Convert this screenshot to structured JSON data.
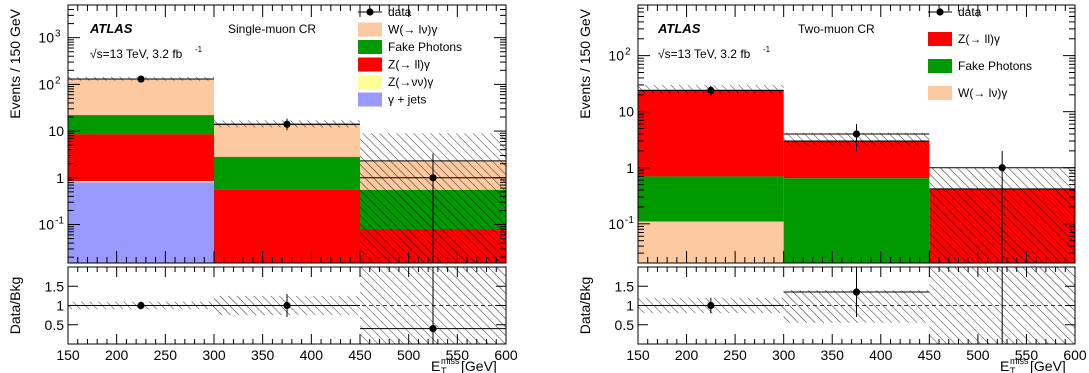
{
  "chart_data": [
    {
      "type": "bar",
      "title": "Single-muon CR",
      "experiment": "ATLAS",
      "energy_label": "√s=13 TeV, 3.2 fb",
      "energy_sup": "-1",
      "xlabel": "E",
      "xlabel_sup": "miss",
      "xlabel_sub": "T",
      "xlabel_unit": "[GeV]",
      "ylabel": "Events / 150 GeV",
      "ratio_ylabel": "Data/Bkg",
      "xlim": [
        150,
        600
      ],
      "ylim": [
        0.015,
        5000
      ],
      "y_scale": "log",
      "x_ticks": [
        "150",
        "200",
        "250",
        "300",
        "350",
        "400",
        "450",
        "500",
        "550",
        "600"
      ],
      "y_ticks": [
        {
          "v": 0.1,
          "label": "10",
          "sup": "-1"
        },
        {
          "v": 1,
          "label": "1",
          "sup": ""
        },
        {
          "v": 10,
          "label": "10",
          "sup": ""
        },
        {
          "v": 100,
          "label": "10",
          "sup": "2"
        },
        {
          "v": 1000,
          "label": "10",
          "sup": "3"
        }
      ],
      "ratio_ylim": [
        0,
        2
      ],
      "ratio_ticks": [
        "0.5",
        "1",
        "1.5"
      ],
      "bins": [
        [
          150,
          300
        ],
        [
          300,
          450
        ],
        [
          450,
          600
        ]
      ],
      "stack_order": [
        "γ + jets",
        "Z(→νν)γ",
        "Z(→ ll)γ",
        "Fake Photons",
        "W(→ lν)γ"
      ],
      "stack_cumulative": [
        [
          0.8,
          0.85,
          8.5,
          22,
          130
        ],
        [
          0.001,
          0.001,
          0.55,
          2.8,
          14
        ],
        [
          0.001,
          0.001,
          0.08,
          0.55,
          2.3
        ]
      ],
      "uncertainty_band": [
        [
          120,
          145
        ],
        [
          12,
          17
        ],
        [
          0.01,
          9
        ]
      ],
      "data": [
        {
          "x": 225,
          "y": 130,
          "err_up": 12,
          "err_down": 12
        },
        {
          "x": 375,
          "y": 14,
          "err_up": 4.5,
          "err_down": 3.5
        },
        {
          "x": 525,
          "y": 1,
          "err_up": 2.3,
          "err_down": 0.99
        }
      ],
      "ratio": [
        {
          "x": 225,
          "y": 1.0,
          "err": 0.1,
          "band": [
            0.9,
            1.1
          ]
        },
        {
          "x": 375,
          "y": 1.0,
          "err": 0.3,
          "band": [
            0.75,
            1.25
          ]
        },
        {
          "x": 525,
          "y": 0.4,
          "err": 1.6,
          "band": [
            0.0,
            2.0
          ]
        }
      ],
      "legend": [
        {
          "label": "data",
          "kind": "marker"
        },
        {
          "label": "W(→ lν)γ",
          "kind": "fill",
          "color": "#fcc9a0"
        },
        {
          "label": "Fake Photons",
          "kind": "fill",
          "color": "#009900"
        },
        {
          "label": "Z(→ ll)γ",
          "kind": "fill",
          "color": "#ff0000"
        },
        {
          "label": "Z(→νν)γ",
          "kind": "fill",
          "color": "#ffff99"
        },
        {
          "label": "γ + jets",
          "kind": "fill",
          "color": "#9999ff"
        }
      ]
    },
    {
      "type": "bar",
      "title": "Two-muon CR",
      "experiment": "ATLAS",
      "energy_label": "√s=13 TeV, 3.2 fb",
      "energy_sup": "-1",
      "xlabel": "E",
      "xlabel_sup": "miss",
      "xlabel_sub": "T",
      "xlabel_unit": "[GeV]",
      "ylabel": "Events / 150 GeV",
      "ratio_ylabel": "Data/Bkg",
      "xlim": [
        150,
        600
      ],
      "ylim": [
        0.02,
        800
      ],
      "y_scale": "log",
      "x_ticks": [
        "150",
        "200",
        "250",
        "300",
        "350",
        "400",
        "450",
        "500",
        "550",
        "600"
      ],
      "y_ticks": [
        {
          "v": 0.1,
          "label": "10",
          "sup": "-1"
        },
        {
          "v": 1,
          "label": "1",
          "sup": ""
        },
        {
          "v": 10,
          "label": "10",
          "sup": ""
        },
        {
          "v": 100,
          "label": "10",
          "sup": "2"
        }
      ],
      "ratio_ylim": [
        0,
        2
      ],
      "ratio_ticks": [
        "0.5",
        "1",
        "1.5"
      ],
      "bins": [
        [
          150,
          300
        ],
        [
          300,
          450
        ],
        [
          450,
          600
        ]
      ],
      "stack_order": [
        "W(→ lν)γ",
        "Fake Photons",
        "Z(→ ll)γ"
      ],
      "stack_cumulative": [
        [
          0.11,
          0.7,
          24
        ],
        [
          0.001,
          0.65,
          3.0
        ],
        [
          0.001,
          0.001,
          0.42
        ]
      ],
      "uncertainty_band": [
        [
          21,
          30
        ],
        [
          2.4,
          4.2
        ],
        [
          0.01,
          1.0
        ]
      ],
      "data": [
        {
          "x": 225,
          "y": 24,
          "err_up": 5,
          "err_down": 5
        },
        {
          "x": 375,
          "y": 4,
          "err_up": 2,
          "err_down": 2
        },
        {
          "x": 525,
          "y": 1,
          "err_up": 1,
          "err_down": 0.99
        }
      ],
      "ratio": [
        {
          "x": 225,
          "y": 1.0,
          "err": 0.2,
          "band": [
            0.8,
            1.2
          ]
        },
        {
          "x": 375,
          "y": 1.35,
          "err": 0.65,
          "band": [
            0.55,
            1.4
          ]
        },
        {
          "x": 525,
          "y": 2.3,
          "err": 2.3,
          "band": [
            0.0,
            2.0
          ]
        }
      ],
      "legend": [
        {
          "label": "data",
          "kind": "marker"
        },
        {
          "label": "Z(→ ll)γ",
          "kind": "fill",
          "color": "#ff0000"
        },
        {
          "label": "Fake Photons",
          "kind": "fill",
          "color": "#009900"
        },
        {
          "label": "W(→ lν)γ",
          "kind": "fill",
          "color": "#fcc9a0"
        }
      ]
    }
  ],
  "colors": {
    "γ + jets": "#9999ff",
    "Z(→νν)γ": "#ffff99",
    "Z(→ ll)γ": "#ff0000",
    "Fake Photons": "#009900",
    "W(→ lν)γ": "#fcc9a0"
  }
}
